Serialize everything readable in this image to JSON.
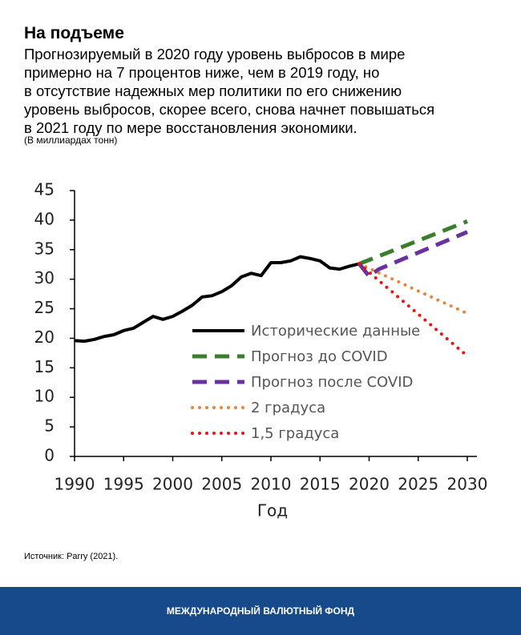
{
  "chart_data": {
    "type": "line",
    "title": "На подъеме",
    "subtitle_lines": [
      "Прогнозируемый в 2020 году уровень выбросов в мире",
      "примерно на 7 процентов ниже, чем в 2019 году, но",
      "в отсутствие надежных мер политики по его снижению",
      "уровень выбросов, скорее всего, снова начнет повышаться",
      "в 2021 году по мере восстановления экономики."
    ],
    "units": "(В миллиардах тонн)",
    "xlabel": "Год",
    "xlim": [
      1990,
      2030
    ],
    "xticks": [
      1990,
      1995,
      2000,
      2005,
      2010,
      2015,
      2020,
      2025,
      2030
    ],
    "ylim": [
      0,
      45
    ],
    "yticks": [
      0,
      5,
      10,
      15,
      20,
      25,
      30,
      35,
      40,
      45
    ],
    "series": [
      {
        "name": "Исторические данные",
        "color": "#000000",
        "style": "solid",
        "x": [
          1990,
          1991,
          1992,
          1993,
          1994,
          1995,
          1996,
          1997,
          1998,
          1999,
          2000,
          2001,
          2002,
          2003,
          2004,
          2005,
          2006,
          2007,
          2008,
          2009,
          2010,
          2011,
          2012,
          2013,
          2014,
          2015,
          2016,
          2017,
          2018,
          2019
        ],
        "values": [
          19.6,
          19.5,
          19.8,
          20.3,
          20.6,
          21.3,
          21.7,
          22.7,
          23.7,
          23.2,
          23.7,
          24.6,
          25.6,
          27.0,
          27.2,
          27.9,
          28.9,
          30.4,
          31.0,
          30.6,
          32.8,
          32.8,
          33.1,
          33.8,
          33.5,
          33.1,
          31.9,
          31.7,
          32.2,
          32.6
        ]
      },
      {
        "name": "Прогноз до COVID",
        "color": "#3a7d2c",
        "style": "dashed",
        "x": [
          2019,
          2030
        ],
        "values": [
          32.6,
          39.8
        ]
      },
      {
        "name": "Прогноз после COVID",
        "color": "#6a2fa0",
        "style": "dashed",
        "x": [
          2019,
          2020,
          2021,
          2030
        ],
        "values": [
          32.6,
          30.5,
          31.7,
          38.0
        ]
      },
      {
        "name": "2 градуса",
        "color": "#e8833a",
        "style": "dotted",
        "x": [
          2019,
          2030
        ],
        "values": [
          32.6,
          24.2
        ]
      },
      {
        "name": "1,5 градуса",
        "color": "#ee1111",
        "style": "dotted",
        "x": [
          2019,
          2030
        ],
        "values": [
          32.6,
          17.0
        ]
      }
    ],
    "source": "Источник: Parry (2021).",
    "footer": "МЕЖДУНАРОДНЫЙ ВАЛЮТНЫЙ ФОНД"
  }
}
